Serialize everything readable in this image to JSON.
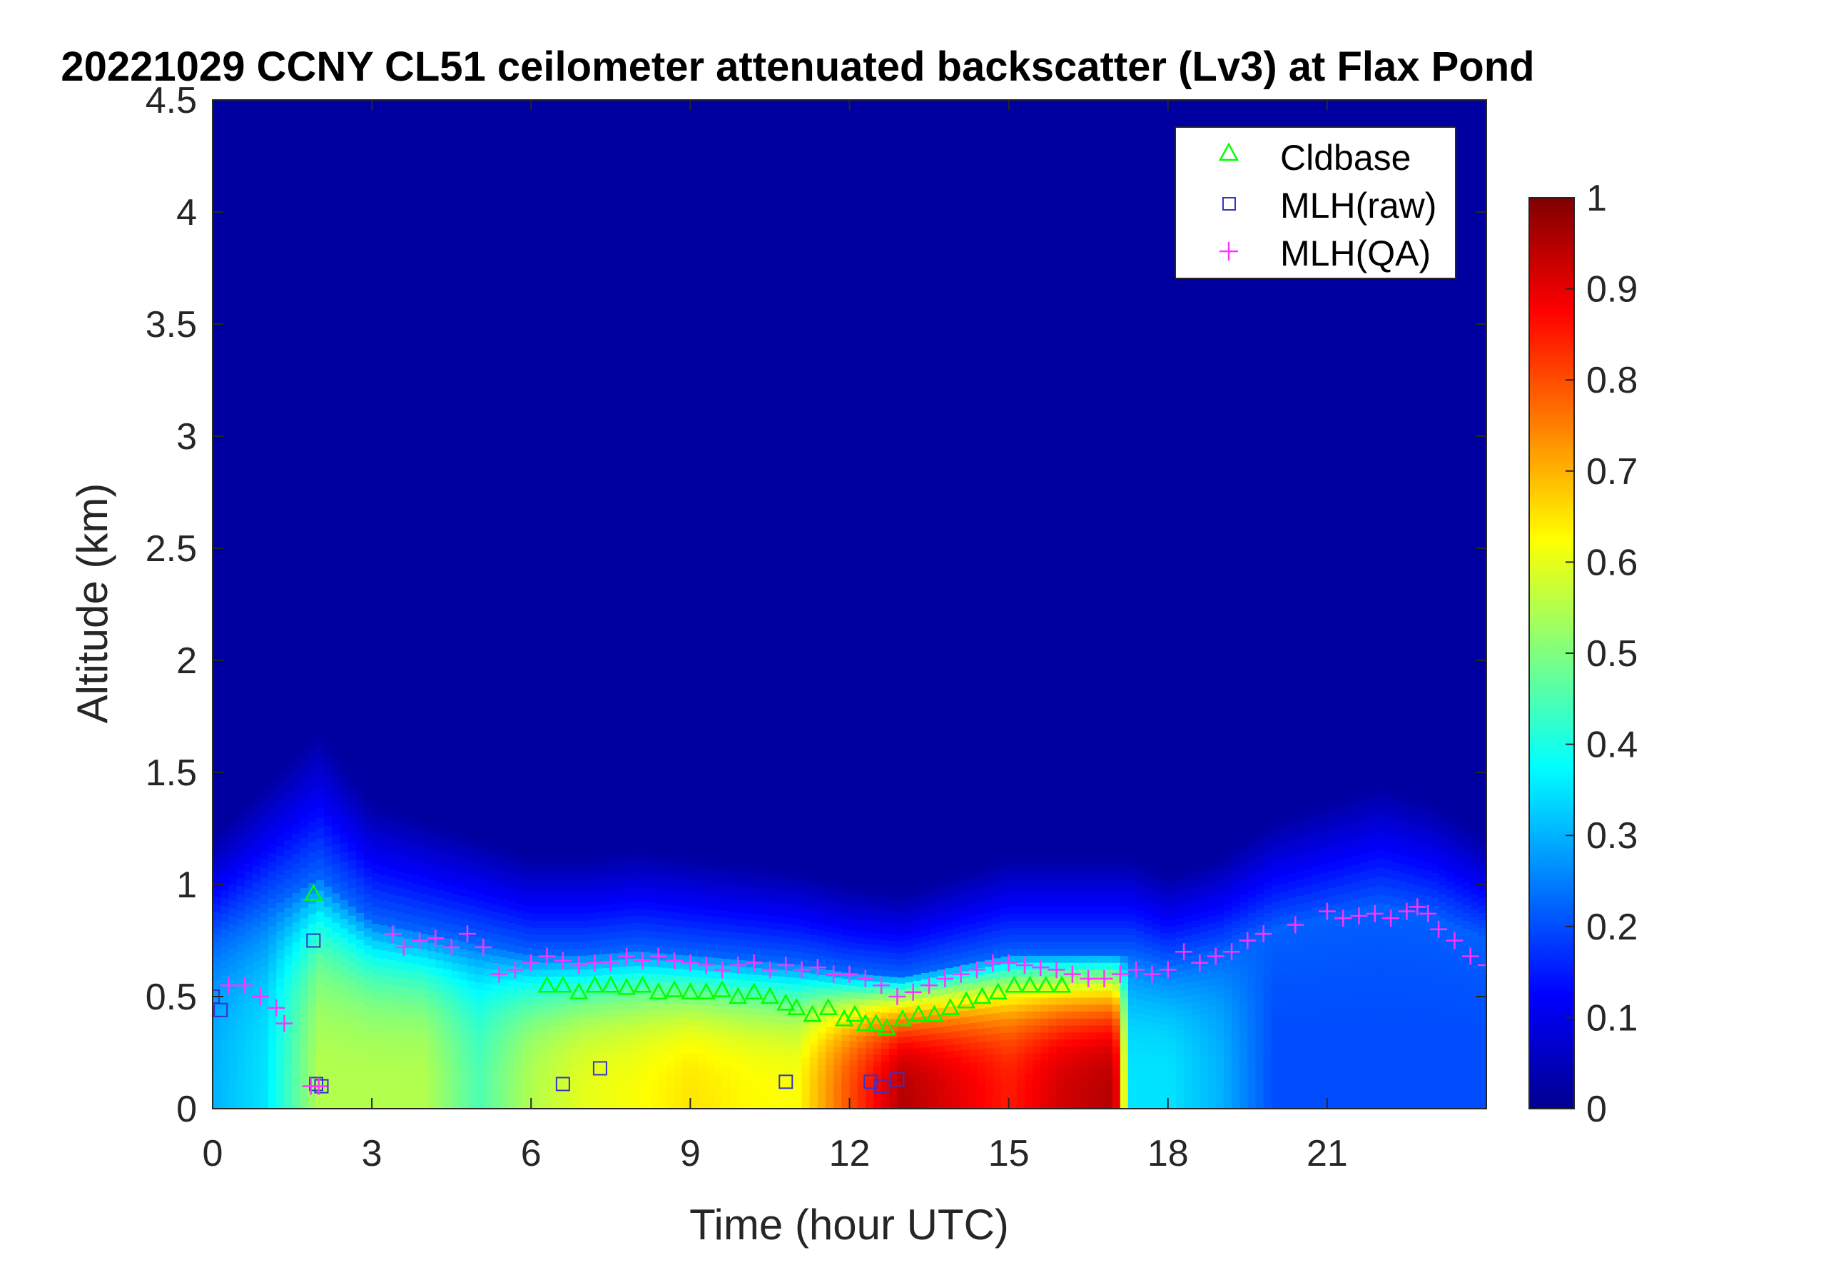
{
  "chart_data": {
    "type": "heatmap",
    "title": "20221029 CCNY CL51 ceilometer attenuated backscatter (Lv3) at Flax Pond",
    "xlabel": "Time (hour UTC)",
    "ylabel": "Altitude (km)",
    "xlim": [
      0,
      24
    ],
    "ylim": [
      0,
      4.5
    ],
    "x_ticks": [
      "0",
      "3",
      "6",
      "9",
      "12",
      "15",
      "18",
      "21"
    ],
    "y_ticks": [
      "0",
      "0.5",
      "1",
      "1.5",
      "2",
      "2.5",
      "3",
      "3.5",
      "4",
      "4.5"
    ],
    "colorbar": {
      "colormap": "jet",
      "range": [
        0,
        1
      ],
      "ticks": [
        "0",
        "0.1",
        "0.2",
        "0.3",
        "0.4",
        "0.5",
        "0.6",
        "0.7",
        "0.8",
        "0.9",
        "1"
      ]
    },
    "legend": {
      "position": "top-right",
      "entries": [
        {
          "label": "Cldbase",
          "marker": "triangle",
          "color": "#00ff00"
        },
        {
          "label": "MLH(raw)",
          "marker": "square",
          "color": "#3333cc"
        },
        {
          "label": "MLH(QA)",
          "marker": "plus",
          "color": "#ff33ff"
        }
      ]
    },
    "grid": false,
    "background_value": 0.02,
    "aerosol_layer": {
      "time": [
        0,
        1,
        2,
        3,
        4,
        5,
        6,
        7,
        8,
        9,
        10,
        11,
        12,
        13,
        14,
        15,
        16,
        17,
        17.3,
        18,
        19,
        20,
        21,
        22,
        23,
        24
      ],
      "top_km": [
        0.75,
        0.9,
        1.05,
        0.85,
        0.8,
        0.75,
        0.7,
        0.7,
        0.72,
        0.7,
        0.68,
        0.66,
        0.62,
        0.6,
        0.65,
        0.7,
        0.7,
        0.7,
        0.7,
        0.65,
        0.7,
        0.8,
        0.85,
        0.9,
        0.85,
        0.75
      ],
      "surface_value": [
        0.3,
        0.35,
        0.55,
        0.55,
        0.55,
        0.45,
        0.55,
        0.6,
        0.62,
        0.65,
        0.63,
        0.62,
        0.8,
        0.95,
        0.9,
        0.85,
        0.92,
        0.95,
        0.35,
        0.35,
        0.3,
        0.2,
        0.2,
        0.2,
        0.2,
        0.2
      ]
    },
    "series": [
      {
        "name": "Cldbase",
        "marker": "triangle",
        "color": "#00ff00",
        "x": [
          1.9,
          6.3,
          6.6,
          6.9,
          7.2,
          7.5,
          7.8,
          8.1,
          8.4,
          8.7,
          9.0,
          9.3,
          9.6,
          9.9,
          10.2,
          10.5,
          10.8,
          11.0,
          11.3,
          11.6,
          11.9,
          12.1,
          12.3,
          12.5,
          12.7,
          13.0,
          13.3,
          13.6,
          13.9,
          14.2,
          14.5,
          14.8,
          15.1,
          15.4,
          15.7,
          16.0
        ],
        "y": [
          0.96,
          0.55,
          0.55,
          0.52,
          0.55,
          0.55,
          0.54,
          0.55,
          0.52,
          0.53,
          0.52,
          0.52,
          0.53,
          0.5,
          0.52,
          0.5,
          0.47,
          0.45,
          0.42,
          0.45,
          0.4,
          0.42,
          0.38,
          0.38,
          0.36,
          0.4,
          0.42,
          0.42,
          0.45,
          0.48,
          0.5,
          0.52,
          0.55,
          0.55,
          0.55,
          0.55
        ]
      },
      {
        "name": "MLH(raw)",
        "marker": "square",
        "color": "#3333cc",
        "x": [
          0.0,
          0.15,
          1.9,
          1.95,
          2.05,
          6.6,
          7.3,
          10.8,
          12.4,
          12.6,
          12.9
        ],
        "y": [
          0.5,
          0.44,
          0.75,
          0.11,
          0.1,
          0.11,
          0.18,
          0.12,
          0.12,
          0.1,
          0.13
        ]
      },
      {
        "name": "MLH(QA)",
        "marker": "plus",
        "color": "#ff33ff",
        "x": [
          0.0,
          0.3,
          0.6,
          0.9,
          1.2,
          1.35,
          1.85,
          2.0,
          3.4,
          3.6,
          3.9,
          4.2,
          4.5,
          4.8,
          5.1,
          5.4,
          5.7,
          6.0,
          6.3,
          6.6,
          6.9,
          7.2,
          7.5,
          7.8,
          8.1,
          8.4,
          8.7,
          9.0,
          9.3,
          9.6,
          9.9,
          10.2,
          10.5,
          10.8,
          11.1,
          11.4,
          11.7,
          12.0,
          12.3,
          12.6,
          12.9,
          13.2,
          13.5,
          13.8,
          14.1,
          14.4,
          14.7,
          15.0,
          15.3,
          15.6,
          15.9,
          16.2,
          16.5,
          16.8,
          17.1,
          17.4,
          17.7,
          18.0,
          18.3,
          18.6,
          18.9,
          19.2,
          19.5,
          19.8,
          20.4,
          21.0,
          21.3,
          21.6,
          21.9,
          22.2,
          22.5,
          22.7,
          22.9,
          23.1,
          23.4,
          23.7,
          24.0
        ],
        "y": [
          0.5,
          0.55,
          0.55,
          0.5,
          0.45,
          0.38,
          0.1,
          0.1,
          0.78,
          0.72,
          0.75,
          0.76,
          0.72,
          0.78,
          0.72,
          0.6,
          0.62,
          0.65,
          0.68,
          0.66,
          0.64,
          0.65,
          0.65,
          0.68,
          0.66,
          0.68,
          0.66,
          0.65,
          0.64,
          0.62,
          0.64,
          0.65,
          0.62,
          0.64,
          0.62,
          0.63,
          0.6,
          0.6,
          0.58,
          0.55,
          0.5,
          0.52,
          0.55,
          0.58,
          0.6,
          0.62,
          0.65,
          0.65,
          0.64,
          0.63,
          0.62,
          0.6,
          0.58,
          0.58,
          0.6,
          0.62,
          0.6,
          0.62,
          0.7,
          0.65,
          0.68,
          0.7,
          0.75,
          0.78,
          0.82,
          0.88,
          0.85,
          0.86,
          0.87,
          0.85,
          0.88,
          0.9,
          0.87,
          0.8,
          0.75,
          0.68,
          0.64
        ]
      }
    ]
  }
}
